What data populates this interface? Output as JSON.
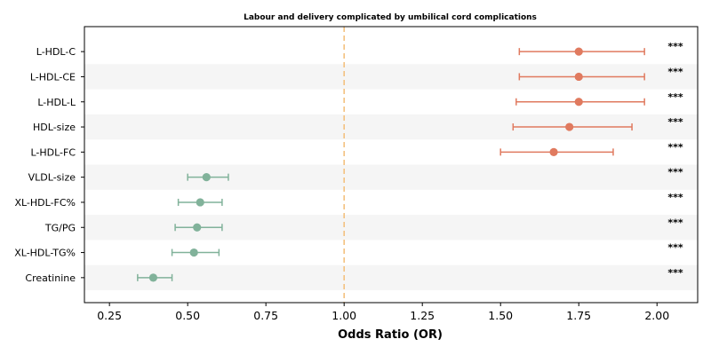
{
  "chart_data": {
    "type": "forest",
    "title": "Labour and delivery complicated by umbilical cord complications",
    "xlabel": "Odds Ratio (OR)",
    "ylabel": "",
    "xlim": [
      0.17,
      2.13
    ],
    "xticks": [
      "0.25",
      "0.50",
      "0.75",
      "1.00",
      "1.25",
      "1.50",
      "1.75",
      "2.00"
    ],
    "reference_line": 1.0,
    "grid": false,
    "colors": {
      "risk": "#e07a5f",
      "protective": "#81b29a",
      "reference": "#f4c17f",
      "stripe": "#f5f5f5"
    },
    "rows": [
      {
        "label": "L-HDL-C",
        "or": 1.75,
        "lower": 1.56,
        "upper": 1.96,
        "sig": "***"
      },
      {
        "label": "L-HDL-CE",
        "or": 1.75,
        "lower": 1.56,
        "upper": 1.96,
        "sig": "***"
      },
      {
        "label": "L-HDL-L",
        "or": 1.75,
        "lower": 1.55,
        "upper": 1.96,
        "sig": "***"
      },
      {
        "label": "HDL-size",
        "or": 1.72,
        "lower": 1.54,
        "upper": 1.92,
        "sig": "***"
      },
      {
        "label": "L-HDL-FC",
        "or": 1.67,
        "lower": 1.5,
        "upper": 1.86,
        "sig": "***"
      },
      {
        "label": "VLDL-size",
        "or": 0.56,
        "lower": 0.5,
        "upper": 0.63,
        "sig": "***"
      },
      {
        "label": "XL-HDL-FC%",
        "or": 0.54,
        "lower": 0.47,
        "upper": 0.61,
        "sig": "***"
      },
      {
        "label": "TG/PG",
        "or": 0.53,
        "lower": 0.46,
        "upper": 0.61,
        "sig": "***"
      },
      {
        "label": "XL-HDL-TG%",
        "or": 0.52,
        "lower": 0.45,
        "upper": 0.6,
        "sig": "***"
      },
      {
        "label": "Creatinine",
        "or": 0.39,
        "lower": 0.34,
        "upper": 0.45,
        "sig": "***"
      }
    ]
  }
}
